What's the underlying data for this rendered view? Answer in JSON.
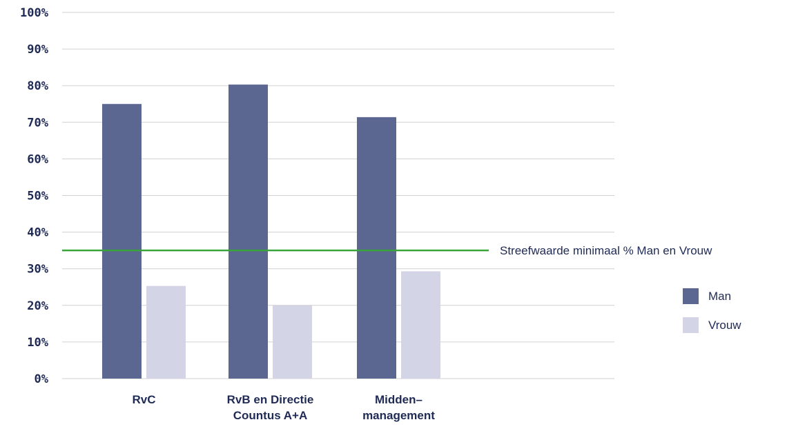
{
  "chart_data": {
    "type": "bar",
    "categories": [
      [
        "RvC"
      ],
      [
        "RvB en Directie",
        "Countus A+A"
      ],
      [
        "Midden–",
        "management"
      ]
    ],
    "series": [
      {
        "name": "Man",
        "values": [
          75,
          80.3,
          71.4
        ],
        "color": "#5b6790"
      },
      {
        "name": "Vrouw",
        "values": [
          25.3,
          20,
          29.3
        ],
        "color": "#d3d5e6"
      }
    ],
    "y_ticks": [
      "0%",
      "10%",
      "20%",
      "30%",
      "40%",
      "50%",
      "60%",
      "70%",
      "80%",
      "90%",
      "100%"
    ],
    "ylim": [
      0,
      100
    ],
    "reference_line": {
      "value": 35,
      "label": "Streefwaarde minimaal % Man en Vrouw",
      "color": "#3aa43a"
    },
    "grid": true,
    "gridline_color": "#d0d0d0",
    "legend_position": "right"
  }
}
